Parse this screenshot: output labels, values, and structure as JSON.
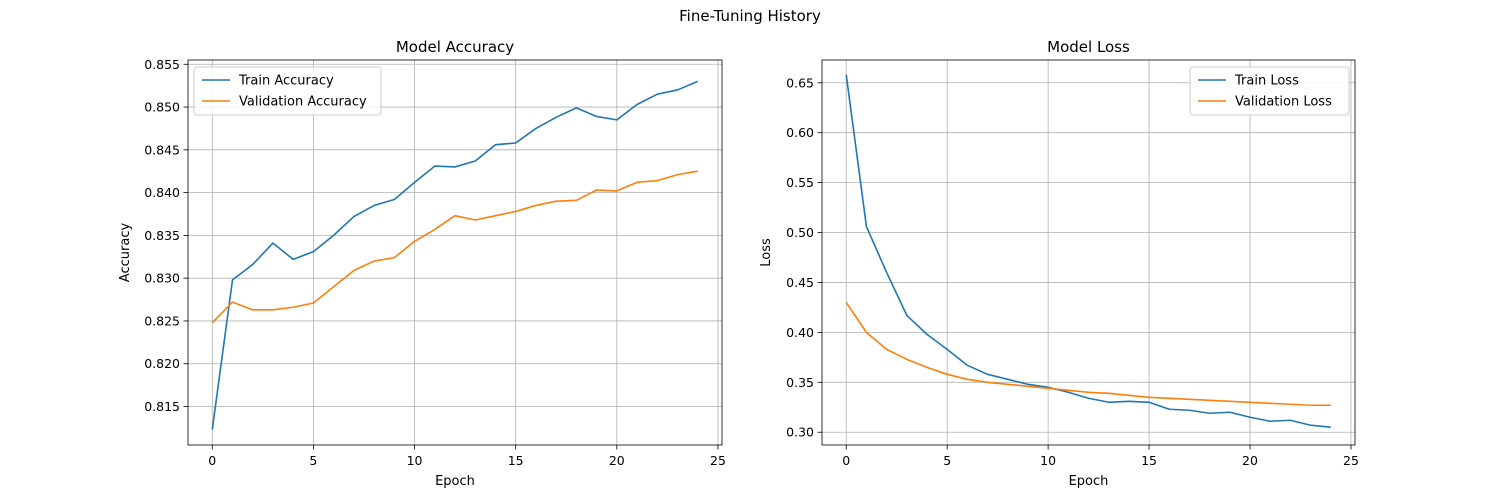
{
  "figure": {
    "suptitle": "Fine-Tuning History"
  },
  "chart_data": [
    {
      "type": "line",
      "title": "Model Accuracy",
      "xlabel": "Epoch",
      "ylabel": "Accuracy",
      "xlim": [
        -1.2,
        25.2
      ],
      "ylim": [
        0.8105,
        0.8555
      ],
      "xticks": [
        0,
        5,
        10,
        15,
        20,
        25
      ],
      "yticks": [
        0.815,
        0.82,
        0.825,
        0.83,
        0.835,
        0.84,
        0.845,
        0.85,
        0.855
      ],
      "ytick_decimals": 3,
      "grid": true,
      "legend_position": "upper left",
      "x": [
        0,
        1,
        2,
        3,
        4,
        5,
        6,
        7,
        8,
        9,
        10,
        11,
        12,
        13,
        14,
        15,
        16,
        17,
        18,
        19,
        20,
        21,
        22,
        23,
        24
      ],
      "series": [
        {
          "name": "Train Accuracy",
          "color": "#1f77b4",
          "values": [
            0.8123,
            0.8298,
            0.8316,
            0.8341,
            0.8322,
            0.8331,
            0.835,
            0.8372,
            0.8385,
            0.8392,
            0.8412,
            0.8431,
            0.843,
            0.8437,
            0.8456,
            0.8458,
            0.8475,
            0.8488,
            0.8499,
            0.8489,
            0.8485,
            0.8503,
            0.8515,
            0.852,
            0.853
          ]
        },
        {
          "name": "Validation Accuracy",
          "color": "#ff7f0e",
          "values": [
            0.8248,
            0.8272,
            0.8263,
            0.8263,
            0.8266,
            0.8271,
            0.829,
            0.8309,
            0.832,
            0.8324,
            0.8343,
            0.8357,
            0.8373,
            0.8368,
            0.8373,
            0.8378,
            0.8385,
            0.839,
            0.8391,
            0.8403,
            0.8402,
            0.8412,
            0.8414,
            0.8421,
            0.8425
          ]
        }
      ]
    },
    {
      "type": "line",
      "title": "Model Loss",
      "xlabel": "Epoch",
      "ylabel": "Loss",
      "xlim": [
        -1.2,
        25.2
      ],
      "ylim": [
        0.2872,
        0.6728
      ],
      "xticks": [
        0,
        5,
        10,
        15,
        20,
        25
      ],
      "yticks": [
        0.3,
        0.35,
        0.4,
        0.45,
        0.5,
        0.55,
        0.6,
        0.65
      ],
      "ytick_decimals": 2,
      "grid": true,
      "legend_position": "upper right",
      "x": [
        0,
        1,
        2,
        3,
        4,
        5,
        6,
        7,
        8,
        9,
        10,
        11,
        12,
        13,
        14,
        15,
        16,
        17,
        18,
        19,
        20,
        21,
        22,
        23,
        24
      ],
      "series": [
        {
          "name": "Train Loss",
          "color": "#1f77b4",
          "values": [
            0.658,
            0.506,
            0.46,
            0.417,
            0.398,
            0.383,
            0.367,
            0.358,
            0.353,
            0.348,
            0.345,
            0.34,
            0.334,
            0.33,
            0.331,
            0.33,
            0.323,
            0.322,
            0.319,
            0.32,
            0.315,
            0.311,
            0.312,
            0.307,
            0.305
          ]
        },
        {
          "name": "Validation Loss",
          "color": "#ff7f0e",
          "values": [
            0.43,
            0.4,
            0.383,
            0.373,
            0.365,
            0.358,
            0.353,
            0.35,
            0.348,
            0.346,
            0.344,
            0.342,
            0.34,
            0.339,
            0.337,
            0.335,
            0.334,
            0.333,
            0.332,
            0.331,
            0.33,
            0.329,
            0.328,
            0.327,
            0.327
          ]
        }
      ]
    }
  ]
}
